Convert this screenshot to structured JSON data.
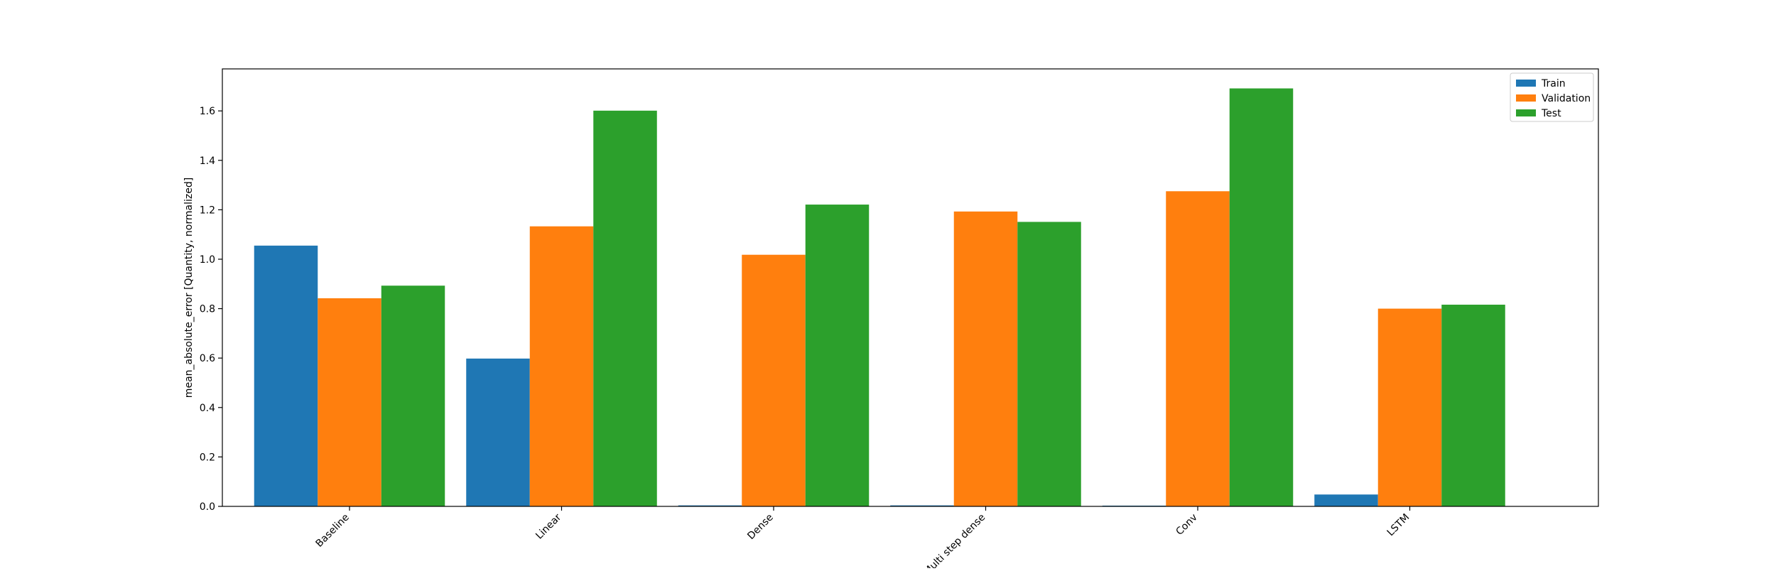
{
  "chart_data": {
    "type": "bar",
    "categories": [
      "Baseline",
      "Linear",
      "Dense",
      "Multi step dense",
      "Conv",
      "LSTM"
    ],
    "series": [
      {
        "name": "Train",
        "color": "#1f77b4",
        "values": [
          1.055,
          0.598,
          0.004,
          0.004,
          0.003,
          0.048
        ]
      },
      {
        "name": "Validation",
        "color": "#ff7f0e",
        "values": [
          0.842,
          1.133,
          1.018,
          1.193,
          1.275,
          0.8
        ]
      },
      {
        "name": "Test",
        "color": "#2ca02c",
        "values": [
          0.893,
          1.601,
          1.221,
          1.151,
          1.691,
          0.816
        ]
      }
    ],
    "title": "",
    "xlabel": "",
    "ylabel": "mean_absolute_error [Quantity, normalized]",
    "ylim": [
      0,
      1.77
    ],
    "yticks": [
      0.0,
      0.2,
      0.4,
      0.6,
      0.8,
      1.0,
      1.2,
      1.4,
      1.6
    ],
    "ytick_labels": [
      "0.0",
      "0.2",
      "0.4",
      "0.6",
      "0.8",
      "1.0",
      "1.2",
      "1.4",
      "1.6"
    ],
    "grid": false,
    "legend_position": "top-right"
  }
}
